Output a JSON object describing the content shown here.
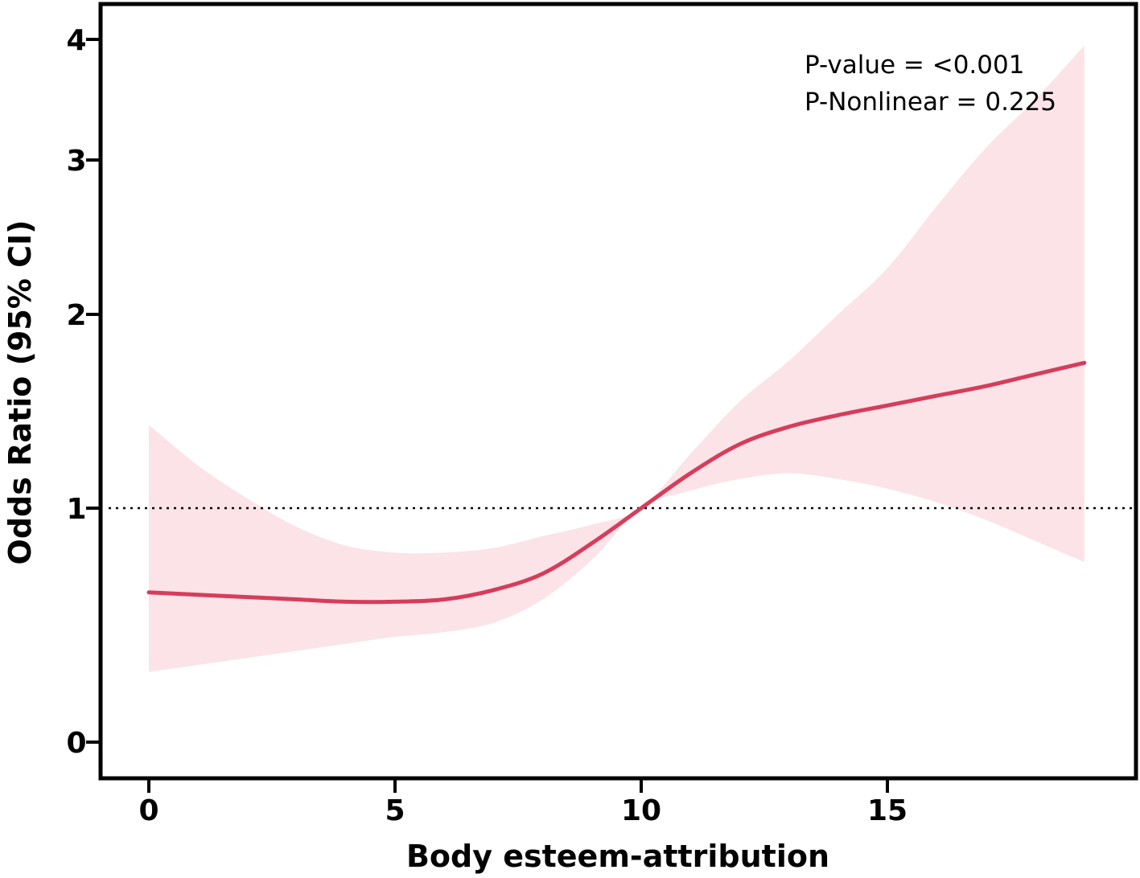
{
  "chart_data": {
    "type": "line",
    "title": "",
    "xlabel": "Body esteem-attribution",
    "ylabel": "Odds Ratio (95% CI)",
    "xlim": [
      -0.4,
      19.5
    ],
    "x_ticks": [
      0,
      5,
      10,
      15
    ],
    "y_ticks": [
      0,
      1,
      2,
      3,
      4
    ],
    "y_tick_labels": [
      "0",
      "1",
      "2",
      "3",
      "4"
    ],
    "reference_line": {
      "y": 1,
      "style": "dotted"
    },
    "annotations": [
      "P-value = <0.001",
      "P-Nonlinear = 0.225"
    ],
    "colors": {
      "line": "#d63d5b",
      "band": "#fbe3e8",
      "axis": "#000000"
    },
    "series": [
      {
        "name": "Odds Ratio",
        "x": [
          0,
          1,
          2,
          3,
          4,
          5,
          6,
          7,
          8,
          9,
          10,
          11,
          12,
          13,
          14,
          15,
          16,
          17,
          18,
          19
        ],
        "y": [
          0.64,
          0.63,
          0.62,
          0.61,
          0.6,
          0.6,
          0.61,
          0.65,
          0.72,
          0.85,
          1.0,
          1.18,
          1.33,
          1.42,
          1.48,
          1.53,
          1.58,
          1.63,
          1.69,
          1.75
        ],
        "lower": [
          0.3,
          0.33,
          0.36,
          0.39,
          0.42,
          0.45,
          0.47,
          0.51,
          0.61,
          0.78,
          1.0,
          1.09,
          1.15,
          1.18,
          1.15,
          1.1,
          1.03,
          0.95,
          0.86,
          0.77
        ],
        "upper": [
          1.43,
          1.22,
          1.05,
          0.92,
          0.84,
          0.81,
          0.81,
          0.83,
          0.88,
          0.93,
          1.0,
          1.28,
          1.55,
          1.76,
          2.0,
          2.3,
          2.7,
          3.1,
          3.5,
          3.95
        ]
      }
    ]
  }
}
